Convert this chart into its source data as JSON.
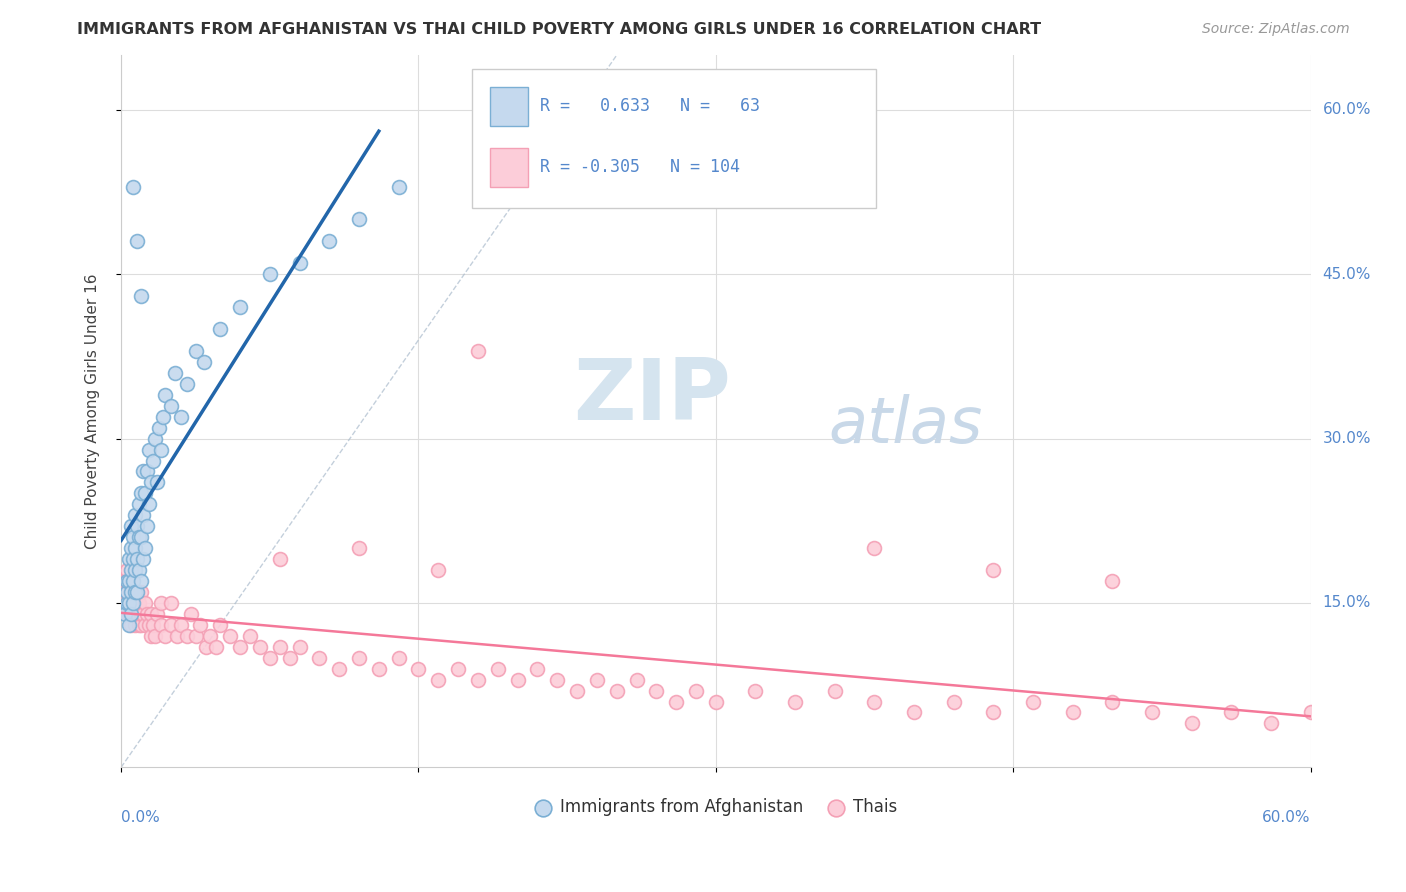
{
  "title": "IMMIGRANTS FROM AFGHANISTAN VS THAI CHILD POVERTY AMONG GIRLS UNDER 16 CORRELATION CHART",
  "source": "Source: ZipAtlas.com",
  "ylabel": "Child Poverty Among Girls Under 16",
  "xlim": [
    0.0,
    0.6
  ],
  "ylim": [
    0.0,
    0.65
  ],
  "blue_color": "#7BAFD4",
  "blue_fill": "#C5D9EE",
  "pink_color": "#F4A0B5",
  "pink_fill": "#FCCDD9",
  "trend_blue": "#2266AA",
  "trend_pink": "#F47899",
  "watermark_zip": "ZIP",
  "watermark_atlas": "atlas",
  "afg_x": [
    0.002,
    0.003,
    0.003,
    0.003,
    0.004,
    0.004,
    0.004,
    0.004,
    0.005,
    0.005,
    0.005,
    0.005,
    0.005,
    0.006,
    0.006,
    0.006,
    0.006,
    0.007,
    0.007,
    0.007,
    0.007,
    0.008,
    0.008,
    0.008,
    0.009,
    0.009,
    0.009,
    0.01,
    0.01,
    0.01,
    0.011,
    0.011,
    0.011,
    0.012,
    0.012,
    0.013,
    0.013,
    0.014,
    0.014,
    0.015,
    0.016,
    0.017,
    0.018,
    0.019,
    0.02,
    0.021,
    0.022,
    0.025,
    0.027,
    0.03,
    0.033,
    0.038,
    0.042,
    0.05,
    0.06,
    0.075,
    0.09,
    0.105,
    0.12,
    0.14,
    0.01,
    0.008,
    0.006
  ],
  "afg_y": [
    0.14,
    0.15,
    0.16,
    0.17,
    0.13,
    0.15,
    0.17,
    0.19,
    0.14,
    0.16,
    0.18,
    0.2,
    0.22,
    0.15,
    0.17,
    0.19,
    0.21,
    0.16,
    0.18,
    0.2,
    0.23,
    0.16,
    0.19,
    0.22,
    0.18,
    0.21,
    0.24,
    0.17,
    0.21,
    0.25,
    0.19,
    0.23,
    0.27,
    0.2,
    0.25,
    0.22,
    0.27,
    0.24,
    0.29,
    0.26,
    0.28,
    0.3,
    0.26,
    0.31,
    0.29,
    0.32,
    0.34,
    0.33,
    0.36,
    0.32,
    0.35,
    0.38,
    0.37,
    0.4,
    0.42,
    0.45,
    0.46,
    0.48,
    0.5,
    0.53,
    0.43,
    0.48,
    0.53
  ],
  "thai_x": [
    0.001,
    0.002,
    0.002,
    0.003,
    0.003,
    0.003,
    0.003,
    0.004,
    0.004,
    0.004,
    0.005,
    0.005,
    0.005,
    0.005,
    0.005,
    0.006,
    0.006,
    0.006,
    0.007,
    0.007,
    0.008,
    0.008,
    0.008,
    0.009,
    0.009,
    0.01,
    0.01,
    0.01,
    0.011,
    0.012,
    0.012,
    0.013,
    0.014,
    0.015,
    0.015,
    0.016,
    0.017,
    0.018,
    0.02,
    0.02,
    0.022,
    0.025,
    0.025,
    0.028,
    0.03,
    0.033,
    0.035,
    0.038,
    0.04,
    0.043,
    0.045,
    0.048,
    0.05,
    0.055,
    0.06,
    0.065,
    0.07,
    0.075,
    0.08,
    0.085,
    0.09,
    0.1,
    0.11,
    0.12,
    0.13,
    0.14,
    0.15,
    0.16,
    0.17,
    0.18,
    0.19,
    0.2,
    0.21,
    0.22,
    0.23,
    0.24,
    0.25,
    0.26,
    0.27,
    0.28,
    0.29,
    0.3,
    0.32,
    0.34,
    0.36,
    0.38,
    0.4,
    0.42,
    0.44,
    0.46,
    0.48,
    0.5,
    0.52,
    0.54,
    0.56,
    0.58,
    0.6,
    0.18,
    0.38,
    0.44,
    0.5,
    0.08,
    0.12,
    0.16
  ],
  "thai_y": [
    0.16,
    0.15,
    0.17,
    0.14,
    0.16,
    0.17,
    0.18,
    0.14,
    0.15,
    0.17,
    0.13,
    0.14,
    0.15,
    0.16,
    0.17,
    0.14,
    0.15,
    0.16,
    0.13,
    0.15,
    0.14,
    0.15,
    0.16,
    0.13,
    0.15,
    0.13,
    0.14,
    0.16,
    0.14,
    0.13,
    0.15,
    0.14,
    0.13,
    0.12,
    0.14,
    0.13,
    0.12,
    0.14,
    0.13,
    0.15,
    0.12,
    0.13,
    0.15,
    0.12,
    0.13,
    0.12,
    0.14,
    0.12,
    0.13,
    0.11,
    0.12,
    0.11,
    0.13,
    0.12,
    0.11,
    0.12,
    0.11,
    0.1,
    0.11,
    0.1,
    0.11,
    0.1,
    0.09,
    0.1,
    0.09,
    0.1,
    0.09,
    0.08,
    0.09,
    0.08,
    0.09,
    0.08,
    0.09,
    0.08,
    0.07,
    0.08,
    0.07,
    0.08,
    0.07,
    0.06,
    0.07,
    0.06,
    0.07,
    0.06,
    0.07,
    0.06,
    0.05,
    0.06,
    0.05,
    0.06,
    0.05,
    0.06,
    0.05,
    0.04,
    0.05,
    0.04,
    0.05,
    0.38,
    0.2,
    0.18,
    0.17,
    0.19,
    0.2,
    0.18
  ]
}
